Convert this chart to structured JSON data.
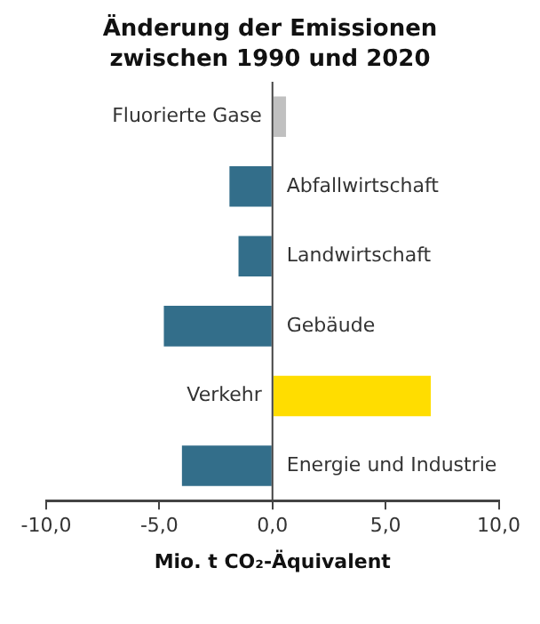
{
  "chart_data": {
    "type": "bar",
    "orientation": "horizontal",
    "title": "Änderung der Emissionen zwischen 1990 und 2020",
    "xlabel": "Mio. t CO₂-Äquivalent",
    "categories": [
      "Fluorierte Gase",
      "Abfallwirtschaft",
      "Landwirtschaft",
      "Gebäude",
      "Verkehr",
      "Energie und Industrie"
    ],
    "values": [
      0.6,
      -1.9,
      -1.5,
      -4.8,
      7.0,
      -4.0
    ],
    "colors": [
      "#c0c0c0",
      "#336e8a",
      "#336e8a",
      "#336e8a",
      "#ffdd00",
      "#336e8a"
    ],
    "xlim": [
      -10,
      10
    ],
    "xticks": [
      {
        "value": -10,
        "label": "-10,0"
      },
      {
        "value": -5,
        "label": "-5,0"
      },
      {
        "value": 0,
        "label": "0,0"
      },
      {
        "value": 5,
        "label": "5,0"
      },
      {
        "value": 10,
        "label": "10,0"
      }
    ],
    "grid": false,
    "legend": false
  }
}
